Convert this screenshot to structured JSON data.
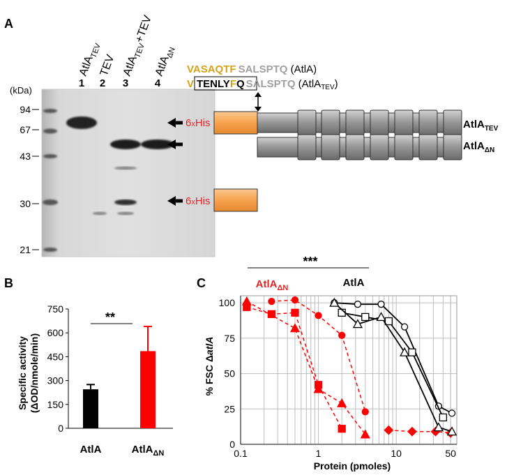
{
  "panels": {
    "A": {
      "label": "A",
      "kda_label": "(kDa)",
      "markers": [
        "94",
        "67",
        "43",
        "30",
        "21"
      ],
      "lanes": [
        {
          "num": "1",
          "name": "AtlA",
          "sub": "TEV",
          "plus": ""
        },
        {
          "num": "2",
          "name": "TEV",
          "sub": "",
          "plus": ""
        },
        {
          "num": "3",
          "name": "AtlA",
          "sub": "TEV",
          "plus": "+TEV"
        },
        {
          "num": "4",
          "name": "AtlA",
          "sub": "ΔN",
          "plus": ""
        }
      ],
      "his_tag": {
        "n": "6",
        "x": "x",
        "his": "His"
      },
      "seq1": {
        "gold": "VASAQTF",
        "gray": "SALSPTQ",
        "suffix": " (AtlA)"
      },
      "seq2": {
        "v": "V",
        "box_black": "TENLY",
        "box_gold": "F",
        "box_q": "Q",
        "gray": "SALSPTQ",
        "suffix_open": " (AtlA",
        "suffix_sub": "TEV",
        "suffix_close": ")"
      },
      "construct_labels": [
        {
          "name": "AtlA",
          "sub": "TEV"
        },
        {
          "name": "AtlA",
          "sub": "ΔN"
        }
      ],
      "colors": {
        "gold": "#d4a31a",
        "gray": "#a0a0a0",
        "red": "#e0262a",
        "orange": "#f7a24d"
      }
    },
    "B": {
      "label": "B",
      "ylabel_line1": "Specific activity",
      "ylabel_line2": "(ΔOD/nmole/min)",
      "significance": "**",
      "chart_data": {
        "type": "bar",
        "categories": [
          "AtlA",
          "AtlAΔN"
        ],
        "values": [
          245,
          485
        ],
        "errors": [
          30,
          155
        ],
        "colors": [
          "#000000",
          "#ff0000"
        ],
        "yticks": [
          "0",
          "150",
          "300",
          "450",
          "600",
          "750"
        ],
        "ylim": [
          0,
          750
        ]
      }
    },
    "C": {
      "label": "C",
      "ylabel_pre": "% FSC Δ",
      "ylabel_ital": "atlA",
      "xlabel": "Protein (pmoles)",
      "significance": "***",
      "group_labels": [
        {
          "name": "AtlA",
          "sub": "ΔN",
          "color": "#e0262a"
        },
        {
          "name": "AtlA",
          "sub": "",
          "color": "#000000"
        }
      ],
      "chart_data": {
        "type": "line",
        "xscale": "log",
        "xlim": [
          0.1,
          60
        ],
        "ylim": [
          0,
          105
        ],
        "xticks": [
          "0.1",
          "1",
          "10",
          "50"
        ],
        "yticks": [
          "0",
          "25",
          "50",
          "75",
          "100"
        ],
        "series": [
          {
            "group": "AtlAΔN",
            "marker": "square",
            "color": "#ff0000",
            "x": [
              0.12,
              0.25,
              0.5,
              1,
              2
            ],
            "y": [
              97,
              92,
              93,
              42,
              11
            ]
          },
          {
            "group": "AtlAΔN",
            "marker": "circle",
            "color": "#ff0000",
            "x": [
              0.25,
              0.5,
              1,
              2,
              4
            ],
            "y": [
              101,
              102,
              91,
              77,
              23
            ]
          },
          {
            "group": "AtlAΔN",
            "marker": "triangle",
            "color": "#ff0000",
            "x": [
              0.12,
              0.5,
              1,
              2,
              4
            ],
            "y": [
              101,
              82,
              39,
              29,
              7
            ]
          },
          {
            "group": "AtlAΔN",
            "marker": "diamond",
            "color": "#ff0000",
            "x": [
              8,
              16,
              32,
              50
            ],
            "y": [
              10,
              9,
              9,
              8
            ]
          },
          {
            "group": "AtlA",
            "marker": "circle",
            "color": "#000000",
            "x": [
              1.6,
              3.2,
              6.4,
              12.8,
              35,
              52
            ],
            "y": [
              100,
              99,
              99,
              83,
              27,
              22
            ]
          },
          {
            "group": "AtlA",
            "marker": "square",
            "color": "#000000",
            "x": [
              2,
              4,
              8,
              16,
              40
            ],
            "y": [
              93,
              90,
              87,
              65,
              19
            ]
          },
          {
            "group": "AtlA",
            "marker": "triangle",
            "color": "#000000",
            "x": [
              1.6,
              3.2,
              6.4,
              12.8,
              35,
              52
            ],
            "y": [
              100,
              85,
              90,
              65,
              12,
              9
            ]
          }
        ]
      }
    }
  }
}
